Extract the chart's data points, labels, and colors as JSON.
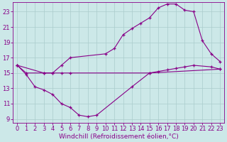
{
  "xlabel": "Windchill (Refroidissement éolien,°C)",
  "bg_color": "#cce8e8",
  "grid_color": "#aacccc",
  "line_color": "#880088",
  "xlim": [
    -0.5,
    23.5
  ],
  "ylim": [
    8.5,
    24.2
  ],
  "xticks": [
    0,
    1,
    2,
    3,
    4,
    5,
    6,
    7,
    8,
    9,
    10,
    11,
    12,
    13,
    14,
    15,
    16,
    17,
    18,
    19,
    20,
    21,
    22,
    23
  ],
  "yticks": [
    9,
    11,
    13,
    15,
    17,
    19,
    21,
    23
  ],
  "fontsize_tick": 6,
  "fontsize_label": 6.5,
  "line1_x": [
    0,
    1,
    2,
    3,
    4,
    5,
    6,
    7,
    8,
    9,
    13,
    15,
    23
  ],
  "line1_y": [
    16.0,
    14.8,
    13.2,
    12.8,
    12.2,
    11.0,
    10.5,
    9.5,
    9.3,
    9.5,
    13.2,
    15.0,
    15.5
  ],
  "line2_x": [
    0,
    1,
    3,
    4,
    5,
    6,
    15,
    16,
    17,
    18,
    19,
    20,
    22,
    23
  ],
  "line2_y": [
    16.0,
    15.0,
    15.0,
    15.0,
    15.0,
    15.0,
    15.0,
    15.2,
    15.4,
    15.6,
    15.8,
    16.0,
    15.8,
    15.5
  ],
  "line3_x": [
    0,
    3,
    4,
    5,
    6,
    10,
    11,
    12,
    13,
    14,
    15,
    16,
    17,
    18,
    19,
    20,
    21,
    22,
    23
  ],
  "line3_y": [
    16.0,
    15.0,
    15.0,
    16.0,
    17.0,
    17.5,
    18.2,
    20.0,
    20.8,
    21.5,
    22.2,
    23.5,
    24.0,
    24.0,
    23.2,
    23.0,
    19.2,
    17.5,
    16.5
  ]
}
